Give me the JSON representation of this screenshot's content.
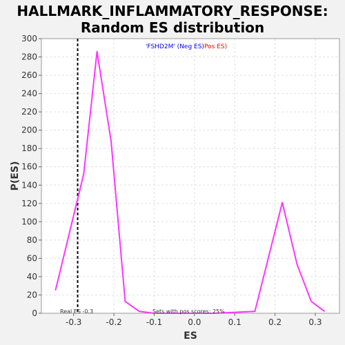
{
  "chart_data": {
    "type": "line",
    "title_line1": "HALLMARK_INFLAMMATORY_RESPONSE:",
    "title_line2": "Random ES distribution",
    "xlabel": "ES",
    "ylabel": "P(ES)",
    "xlim": [
      -0.38,
      0.36
    ],
    "ylim": [
      0,
      300
    ],
    "x_ticks": [
      "-0.3",
      "-0.2",
      "-0.1",
      "0.0",
      "0.1",
      "0.2",
      "0.3"
    ],
    "x_tick_values": [
      -0.3,
      -0.2,
      -0.1,
      0.0,
      0.1,
      0.2,
      0.3
    ],
    "y_ticks": [
      "0",
      "20",
      "40",
      "60",
      "80",
      "100",
      "120",
      "140",
      "160",
      "180",
      "200",
      "220",
      "240",
      "260",
      "280",
      "300"
    ],
    "y_tick_values": [
      0,
      20,
      40,
      60,
      80,
      100,
      120,
      140,
      160,
      180,
      200,
      220,
      240,
      260,
      280,
      300
    ],
    "grid": true,
    "legend": {
      "position": "top-center",
      "phenotype_label": "'FSHD2M' (Neg ES)",
      "pos_label": "Pos ES)",
      "phenotype_color": "#0000ff",
      "pos_color": "#ff0000"
    },
    "series": [
      {
        "color": "#ff33ff",
        "x": [
          -0.345,
          -0.275,
          -0.242,
          -0.207,
          -0.172,
          -0.137,
          -0.1,
          0.05,
          0.15,
          0.218,
          0.255,
          0.29,
          0.323
        ],
        "y": [
          25,
          152,
          286,
          188,
          13,
          2,
          0,
          0,
          2,
          121,
          53,
          13,
          2
        ]
      }
    ],
    "real_es": {
      "value": -0.29,
      "label": "Real ES -0.3",
      "color": "#000000"
    },
    "annotation": "Sets with pos scores: 25%"
  }
}
